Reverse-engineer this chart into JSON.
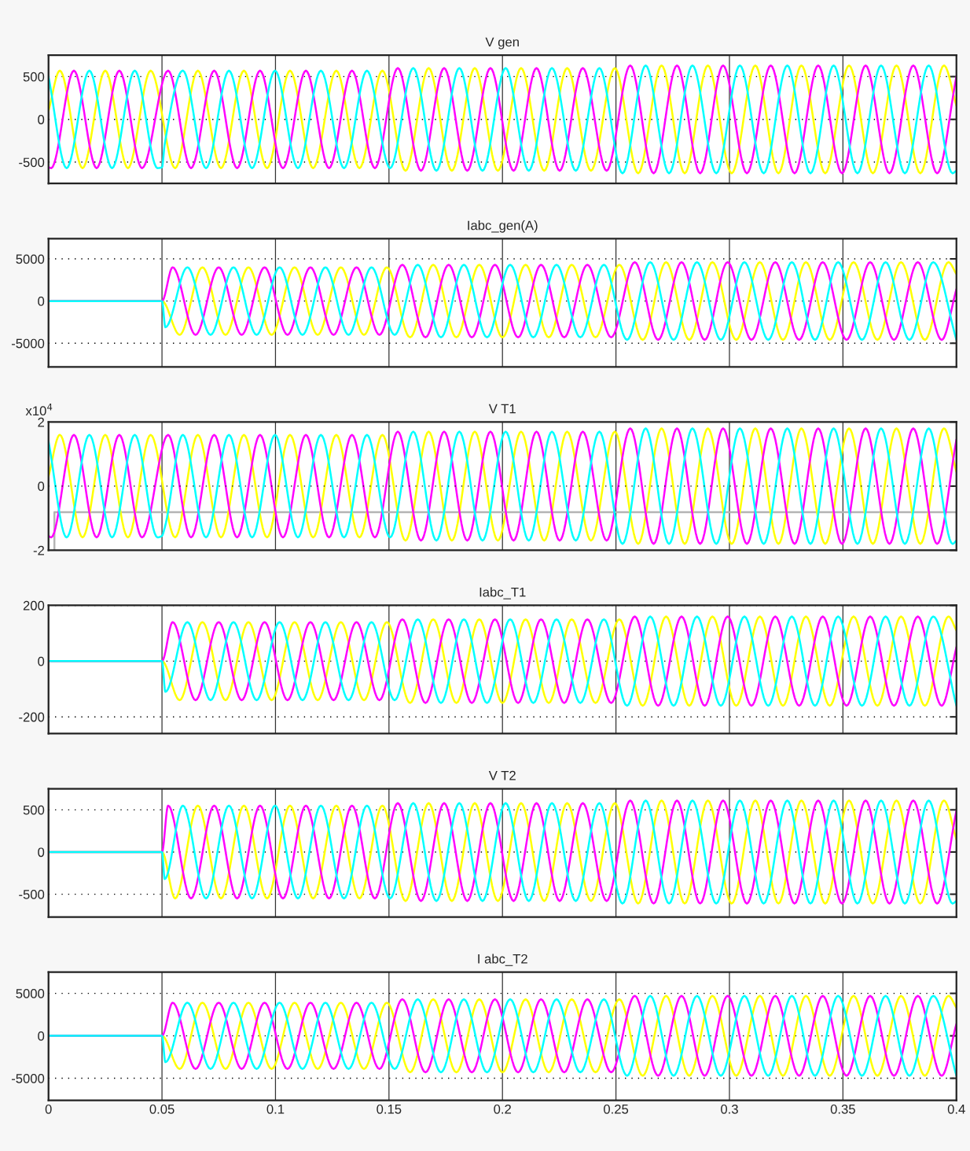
{
  "chart_data": [
    {
      "type": "line",
      "title": "V gen",
      "xlim": [
        0,
        0.4
      ],
      "xticks": [
        0,
        0.05,
        0.1,
        0.15,
        0.2,
        0.25,
        0.3,
        0.35,
        0.4
      ],
      "ylim": [
        -750,
        750
      ],
      "yticks": [
        -500,
        0,
        500
      ],
      "grid": true,
      "tick_labels": "y",
      "series": [
        {
          "color": "#ffff00",
          "x": [
            0,
            0.005,
            0.015,
            0.025,
            0.035,
            0.045,
            0.0558,
            0.0658,
            0.076,
            0.0861,
            0.0963,
            0.1064,
            0.1166,
            0.1268,
            0.137,
            0.1471,
            0.1573,
            0.1675,
            0.1777,
            0.1878,
            0.198,
            0.2082,
            0.2184,
            0.2285,
            0.239,
            0.2495,
            0.2598,
            0.2701,
            0.2803,
            0.2905,
            0.301,
            0.3114,
            0.3216,
            0.3317,
            0.3422,
            0.3527,
            0.3632,
            0.3736,
            0.3841,
            0.3945,
            0.4
          ],
          "values": [
            100,
            570,
            -570,
            570,
            -570,
            570,
            -570,
            570,
            -570,
            570,
            -570,
            570,
            -570,
            570,
            -570,
            570,
            -600,
            600,
            -600,
            600,
            -600,
            600,
            -600,
            600,
            -600,
            600,
            -630,
            630,
            -630,
            630,
            -630,
            630,
            -630,
            630,
            -630,
            630,
            -630,
            630,
            -630,
            630,
            160
          ]
        },
        {
          "color": "#ff00ff",
          "x": [
            0,
            0.0012,
            0.0112,
            0.0212,
            0.0312,
            0.0412,
            0.0527,
            0.0628,
            0.073,
            0.0831,
            0.0932,
            0.1033,
            0.1134,
            0.1236,
            0.1337,
            0.1438,
            0.1539,
            0.1641,
            0.1743,
            0.1845,
            0.1947,
            0.2049,
            0.215,
            0.2252,
            0.2354,
            0.2459,
            0.2563,
            0.2666,
            0.2769,
            0.2871,
            0.2972,
            0.3077,
            0.3182,
            0.3287,
            0.3391,
            0.3496,
            0.36,
            0.3705,
            0.381,
            0.3915,
            0.4
          ],
          "values": [
            -560,
            -570,
            570,
            -570,
            570,
            -570,
            570,
            -570,
            570,
            -570,
            570,
            -570,
            570,
            -570,
            570,
            -570,
            600,
            -600,
            600,
            -600,
            600,
            -600,
            600,
            -600,
            600,
            -600,
            630,
            -630,
            630,
            -630,
            630,
            -630,
            630,
            -630,
            630,
            -630,
            630,
            -630,
            630,
            -630,
            500
          ]
        },
        {
          "color": "#00ffff",
          "x": [
            0,
            0.008,
            0.018,
            0.028,
            0.038,
            0.048,
            0.05,
            0.0512,
            0.0592,
            0.0694,
            0.0795,
            0.0897,
            0.0998,
            0.1099,
            0.12,
            0.1302,
            0.1403,
            0.1505,
            0.1607,
            0.1709,
            0.181,
            0.1912,
            0.2014,
            0.2116,
            0.2218,
            0.2323,
            0.2427,
            0.2529,
            0.2631,
            0.2734,
            0.2837,
            0.2942,
            0.3046,
            0.3151,
            0.3255,
            0.3357,
            0.3459,
            0.3564,
            0.3668,
            0.3773,
            0.3878,
            0.3983,
            0.4
          ],
          "values": [
            500,
            -570,
            570,
            -570,
            570,
            -570,
            -560,
            -290,
            570,
            -570,
            570,
            -570,
            570,
            -570,
            570,
            -570,
            570,
            -570,
            600,
            -600,
            600,
            -600,
            600,
            -600,
            600,
            -600,
            600,
            -630,
            630,
            -630,
            630,
            -630,
            630,
            -630,
            630,
            -630,
            630,
            -630,
            630,
            -630,
            630,
            -630,
            -600
          ]
        }
      ]
    },
    {
      "type": "line",
      "title": "Iabc_gen(A)",
      "xlim": [
        0,
        0.4
      ],
      "xticks": [
        0,
        0.05,
        0.1,
        0.15,
        0.2,
        0.25,
        0.3,
        0.35,
        0.4
      ],
      "ylim": [
        -7800,
        7400
      ],
      "yticks": [
        -5000,
        0,
        5000
      ],
      "grid": true,
      "tick_labels": "y",
      "series": [
        {
          "color": "#ffff00",
          "x": [
            0,
            0.05,
            0.0578,
            0.0678,
            0.078,
            0.0881,
            0.0983,
            0.1084,
            0.1186,
            0.1288,
            0.139,
            0.1491,
            0.1593,
            0.1695,
            0.1797,
            0.1898,
            0.2,
            0.2102,
            0.2204,
            0.2305,
            0.241,
            0.2515,
            0.2618,
            0.2721,
            0.2823,
            0.2925,
            0.303,
            0.3134,
            0.3236,
            0.3337,
            0.3442,
            0.3547,
            0.3652,
            0.3756,
            0.3861,
            0.3965,
            0.4
          ],
          "values": [
            0,
            0,
            -4000,
            4000,
            -4000,
            4000,
            -4000,
            4000,
            -4000,
            4000,
            -4000,
            4000,
            -4300,
            4300,
            -4300,
            4300,
            -4300,
            4300,
            -4300,
            4300,
            -4300,
            4300,
            -4600,
            4600,
            -4600,
            4600,
            -4600,
            4600,
            -4600,
            4600,
            -4600,
            4600,
            -4600,
            4600,
            -4600,
            4600,
            3200
          ]
        },
        {
          "color": "#ff00ff",
          "x": [
            0,
            0.05,
            0.0547,
            0.0648,
            0.075,
            0.0851,
            0.0952,
            0.1053,
            0.1154,
            0.1256,
            0.1357,
            0.1458,
            0.1559,
            0.1661,
            0.1763,
            0.1865,
            0.1967,
            0.2069,
            0.217,
            0.2272,
            0.2374,
            0.2479,
            0.2583,
            0.2686,
            0.2789,
            0.2891,
            0.2992,
            0.3097,
            0.3202,
            0.3307,
            0.3411,
            0.3516,
            0.362,
            0.3725,
            0.383,
            0.3935,
            0.4
          ],
          "values": [
            0,
            0,
            4000,
            -4000,
            4000,
            -4000,
            4000,
            -4000,
            4000,
            -4000,
            4000,
            -4000,
            4300,
            -4300,
            4300,
            -4300,
            4300,
            -4300,
            4300,
            -4300,
            4300,
            -4300,
            4600,
            -4600,
            4600,
            -4600,
            4600,
            -4600,
            4600,
            -4600,
            4600,
            -4600,
            4600,
            -4600,
            4600,
            -4600,
            1400
          ]
        },
        {
          "color": "#00ffff",
          "x": [
            0,
            0.05,
            0.0515,
            0.0612,
            0.0714,
            0.0815,
            0.0917,
            0.1018,
            0.1119,
            0.122,
            0.1322,
            0.1423,
            0.1525,
            0.1627,
            0.1729,
            0.183,
            0.1932,
            0.2034,
            0.2136,
            0.2238,
            0.2343,
            0.2447,
            0.2549,
            0.2651,
            0.2754,
            0.2857,
            0.2962,
            0.3066,
            0.3171,
            0.3275,
            0.3377,
            0.3479,
            0.3584,
            0.3688,
            0.3793,
            0.3898,
            0.4
          ],
          "values": [
            0,
            0,
            -3100,
            4000,
            -4000,
            4000,
            -4000,
            4000,
            -4000,
            4000,
            -4000,
            4000,
            -4000,
            4300,
            -4300,
            4300,
            -4300,
            4300,
            -4300,
            4300,
            -4300,
            4300,
            -4600,
            4600,
            -4600,
            4600,
            -4600,
            4600,
            -4600,
            4600,
            -4600,
            4600,
            -4600,
            4600,
            -4600,
            4600,
            -4600
          ]
        }
      ]
    },
    {
      "type": "line",
      "title": "V T1",
      "xlim": [
        0,
        0.4
      ],
      "xticks": [
        0,
        0.05,
        0.1,
        0.15,
        0.2,
        0.25,
        0.3,
        0.35,
        0.4
      ],
      "ylim": [
        -2,
        2
      ],
      "yticks": [
        -2,
        0,
        2
      ],
      "grid": "x",
      "ref_lines": [
        {
          "axis": "y",
          "value": 0,
          "line_style": "dotted",
          "color": "#000000"
        }
      ],
      "tick_labels": "y",
      "annotations": [
        "x10$^{4}$"
      ],
      "series": [
        {
          "color": "#b4b4b4",
          "x": [
            0.0026,
            0.0026,
            0.4
          ],
          "values": [
            -2,
            -0.81,
            -0.81
          ]
        },
        {
          "color": "#ffff00",
          "x": [
            0,
            0.005,
            0.015,
            0.025,
            0.035,
            0.045,
            0.0558,
            0.0658,
            0.076,
            0.0861,
            0.0963,
            0.1064,
            0.1166,
            0.1268,
            0.137,
            0.1471,
            0.1573,
            0.1675,
            0.1777,
            0.1878,
            0.198,
            0.2082,
            0.2184,
            0.2285,
            0.239,
            0.2495,
            0.2598,
            0.2701,
            0.2803,
            0.2905,
            0.301,
            0.3114,
            0.3216,
            0.3317,
            0.3422,
            0.3527,
            0.3632,
            0.3736,
            0.3841,
            0.3945,
            0.4
          ],
          "values": [
            0.3,
            1.6,
            -1.6,
            1.6,
            -1.6,
            1.6,
            -1.6,
            1.6,
            -1.6,
            1.6,
            -1.6,
            1.6,
            -1.6,
            1.6,
            -1.6,
            1.6,
            -1.7,
            1.7,
            -1.7,
            1.7,
            -1.7,
            1.7,
            -1.7,
            1.7,
            -1.7,
            1.7,
            -1.8,
            1.8,
            -1.8,
            1.8,
            -1.8,
            1.8,
            -1.8,
            1.8,
            -1.8,
            1.8,
            -1.8,
            1.8,
            -1.8,
            1.8,
            0.45
          ]
        },
        {
          "color": "#ff00ff",
          "x": [
            0,
            0.0012,
            0.0112,
            0.0212,
            0.0312,
            0.0412,
            0.0527,
            0.0628,
            0.073,
            0.0831,
            0.0932,
            0.1033,
            0.1134,
            0.1236,
            0.1337,
            0.1438,
            0.1539,
            0.1641,
            0.1743,
            0.1845,
            0.1947,
            0.2049,
            0.215,
            0.2252,
            0.2354,
            0.2459,
            0.2563,
            0.2666,
            0.2769,
            0.2871,
            0.2972,
            0.3077,
            0.3182,
            0.3287,
            0.3391,
            0.3496,
            0.36,
            0.3705,
            0.381,
            0.3915,
            0.4
          ],
          "values": [
            -1.55,
            -1.6,
            1.6,
            -1.6,
            1.6,
            -1.6,
            1.6,
            -1.6,
            1.6,
            -1.6,
            1.6,
            -1.6,
            1.6,
            -1.6,
            1.6,
            -1.6,
            1.7,
            -1.7,
            1.7,
            -1.7,
            1.7,
            -1.7,
            1.7,
            -1.7,
            1.7,
            -1.7,
            1.8,
            -1.8,
            1.8,
            -1.8,
            1.8,
            -1.8,
            1.8,
            -1.8,
            1.8,
            -1.8,
            1.8,
            -1.8,
            1.8,
            -1.8,
            1.45
          ]
        },
        {
          "color": "#00ffff",
          "x": [
            0,
            0.008,
            0.018,
            0.028,
            0.038,
            0.048,
            0.05,
            0.0512,
            0.0592,
            0.0694,
            0.0795,
            0.0897,
            0.0998,
            0.1099,
            0.12,
            0.1302,
            0.1403,
            0.1505,
            0.1607,
            0.1709,
            0.181,
            0.1912,
            0.2014,
            0.2116,
            0.2218,
            0.2323,
            0.2427,
            0.2529,
            0.2631,
            0.2734,
            0.2837,
            0.2942,
            0.3046,
            0.3151,
            0.3255,
            0.3357,
            0.3459,
            0.3564,
            0.3668,
            0.3773,
            0.3878,
            0.3983,
            0.4
          ],
          "values": [
            1.4,
            -1.6,
            1.6,
            -1.6,
            1.6,
            -1.6,
            -1.55,
            -1.3,
            1.6,
            -1.6,
            1.6,
            -1.6,
            1.6,
            -1.6,
            1.6,
            -1.6,
            1.6,
            -1.6,
            1.7,
            -1.7,
            1.7,
            -1.7,
            1.7,
            -1.7,
            1.7,
            -1.7,
            1.7,
            -1.8,
            1.8,
            -1.8,
            1.8,
            -1.8,
            1.8,
            -1.8,
            1.8,
            -1.8,
            1.8,
            -1.8,
            1.8,
            -1.8,
            1.8,
            -1.8,
            -1.7
          ]
        }
      ]
    },
    {
      "type": "line",
      "title": "Iabc_T1",
      "xlim": [
        0,
        0.4
      ],
      "xticks": [
        0,
        0.05,
        0.1,
        0.15,
        0.2,
        0.25,
        0.3,
        0.35,
        0.4
      ],
      "ylim": [
        -260,
        200
      ],
      "yticks": [
        -200,
        0,
        200
      ],
      "grid": true,
      "tick_labels": "y",
      "series": [
        {
          "color": "#ffff00",
          "x": [
            0,
            0.05,
            0.0578,
            0.0678,
            0.078,
            0.0881,
            0.0983,
            0.1084,
            0.1186,
            0.1288,
            0.139,
            0.1491,
            0.1593,
            0.1695,
            0.1797,
            0.1898,
            0.2,
            0.2102,
            0.2204,
            0.2305,
            0.241,
            0.2515,
            0.2618,
            0.2721,
            0.2823,
            0.2925,
            0.303,
            0.3134,
            0.3236,
            0.3337,
            0.3442,
            0.3547,
            0.3652,
            0.3756,
            0.3861,
            0.3965,
            0.4
          ],
          "values": [
            0,
            0,
            -140,
            140,
            -140,
            140,
            -140,
            140,
            -140,
            140,
            -140,
            140,
            -150,
            150,
            -150,
            150,
            -150,
            150,
            -150,
            150,
            -150,
            150,
            -160,
            160,
            -160,
            160,
            -160,
            160,
            -160,
            160,
            -160,
            160,
            -160,
            160,
            -160,
            160,
            110
          ]
        },
        {
          "color": "#ff00ff",
          "x": [
            0,
            0.05,
            0.0547,
            0.0648,
            0.075,
            0.0851,
            0.0952,
            0.1053,
            0.1154,
            0.1256,
            0.1357,
            0.1458,
            0.1559,
            0.1661,
            0.1763,
            0.1865,
            0.1967,
            0.2069,
            0.217,
            0.2272,
            0.2374,
            0.2479,
            0.2583,
            0.2686,
            0.2789,
            0.2891,
            0.2992,
            0.3097,
            0.3202,
            0.3307,
            0.3411,
            0.3516,
            0.362,
            0.3725,
            0.383,
            0.3935,
            0.4
          ],
          "values": [
            0,
            0,
            140,
            -140,
            140,
            -140,
            140,
            -140,
            140,
            -140,
            140,
            -140,
            150,
            -150,
            150,
            -150,
            150,
            -150,
            150,
            -150,
            150,
            -150,
            160,
            -160,
            160,
            -160,
            160,
            -160,
            160,
            -160,
            160,
            -160,
            160,
            -160,
            160,
            -160,
            50
          ]
        },
        {
          "color": "#00ffff",
          "x": [
            0,
            0.05,
            0.0515,
            0.0612,
            0.0714,
            0.0815,
            0.0917,
            0.1018,
            0.1119,
            0.122,
            0.1322,
            0.1423,
            0.1525,
            0.1627,
            0.1729,
            0.183,
            0.1932,
            0.2034,
            0.2136,
            0.2238,
            0.2343,
            0.2447,
            0.2549,
            0.2651,
            0.2754,
            0.2857,
            0.2962,
            0.3066,
            0.3171,
            0.3275,
            0.3377,
            0.3479,
            0.3584,
            0.3688,
            0.3793,
            0.3898,
            0.4
          ],
          "values": [
            0,
            0,
            -110,
            140,
            -140,
            140,
            -140,
            140,
            -140,
            140,
            -140,
            140,
            -140,
            150,
            -150,
            150,
            -150,
            150,
            -150,
            150,
            -150,
            150,
            -160,
            160,
            -160,
            160,
            -160,
            160,
            -160,
            160,
            -160,
            160,
            -160,
            160,
            -160,
            160,
            -160
          ]
        }
      ]
    },
    {
      "type": "line",
      "title": "V T2",
      "xlim": [
        0,
        0.4
      ],
      "xticks": [
        0,
        0.05,
        0.1,
        0.15,
        0.2,
        0.25,
        0.3,
        0.35,
        0.4
      ],
      "ylim": [
        -770,
        750
      ],
      "yticks": [
        -500,
        0,
        500
      ],
      "grid": true,
      "tick_labels": "y",
      "series": [
        {
          "color": "#ffff00",
          "x": [
            0,
            0.05,
            0.0558,
            0.0658,
            0.076,
            0.0861,
            0.0963,
            0.1064,
            0.1166,
            0.1268,
            0.137,
            0.1471,
            0.1573,
            0.1675,
            0.1777,
            0.1878,
            0.198,
            0.2082,
            0.2184,
            0.2285,
            0.239,
            0.2495,
            0.2598,
            0.2701,
            0.2803,
            0.2905,
            0.301,
            0.3114,
            0.3216,
            0.3317,
            0.3422,
            0.3527,
            0.3632,
            0.3736,
            0.3841,
            0.3945,
            0.4
          ],
          "values": [
            0,
            0,
            -550,
            550,
            -550,
            550,
            -550,
            550,
            -550,
            550,
            -550,
            550,
            -580,
            580,
            -580,
            580,
            -580,
            580,
            -580,
            580,
            -580,
            580,
            -610,
            610,
            -610,
            610,
            -610,
            610,
            -610,
            610,
            -610,
            610,
            -610,
            610,
            -610,
            610,
            150
          ]
        },
        {
          "color": "#ff00ff",
          "x": [
            0,
            0.05,
            0.0527,
            0.0628,
            0.073,
            0.0831,
            0.0932,
            0.1033,
            0.1134,
            0.1236,
            0.1337,
            0.1438,
            0.1539,
            0.1641,
            0.1743,
            0.1845,
            0.1947,
            0.2049,
            0.215,
            0.2252,
            0.2354,
            0.2459,
            0.2563,
            0.2666,
            0.2769,
            0.2871,
            0.2972,
            0.3077,
            0.3182,
            0.3287,
            0.3391,
            0.3496,
            0.36,
            0.3705,
            0.381,
            0.3915,
            0.4
          ],
          "values": [
            0,
            0,
            550,
            -550,
            550,
            -550,
            550,
            -550,
            550,
            -550,
            550,
            -550,
            580,
            -580,
            580,
            -580,
            580,
            -580,
            580,
            -580,
            580,
            -580,
            610,
            -610,
            610,
            -610,
            610,
            -610,
            610,
            -610,
            610,
            -610,
            610,
            -610,
            610,
            -610,
            490
          ]
        },
        {
          "color": "#00ffff",
          "x": [
            0,
            0.05,
            0.0512,
            0.0592,
            0.0694,
            0.0795,
            0.0897,
            0.0998,
            0.1099,
            0.12,
            0.1302,
            0.1403,
            0.1505,
            0.1607,
            0.1709,
            0.181,
            0.1912,
            0.2014,
            0.2116,
            0.2218,
            0.2323,
            0.2427,
            0.2529,
            0.2631,
            0.2734,
            0.2837,
            0.2942,
            0.3046,
            0.3151,
            0.3255,
            0.3357,
            0.3459,
            0.3564,
            0.3668,
            0.3773,
            0.3878,
            0.3983,
            0.4
          ],
          "values": [
            0,
            0,
            -320,
            550,
            -550,
            550,
            -550,
            550,
            -550,
            550,
            -550,
            550,
            -550,
            580,
            -580,
            580,
            -580,
            580,
            -580,
            580,
            -580,
            580,
            -610,
            610,
            -610,
            610,
            -610,
            610,
            -610,
            610,
            -610,
            610,
            -610,
            610,
            -610,
            610,
            -610,
            -580
          ]
        }
      ]
    },
    {
      "type": "line",
      "title": "I abc_T2",
      "xlim": [
        0,
        0.4
      ],
      "xticks": [
        0,
        0.05,
        0.1,
        0.15,
        0.2,
        0.25,
        0.3,
        0.35,
        0.4
      ],
      "ylim": [
        -7600,
        7500
      ],
      "yticks": [
        -5000,
        0,
        5000
      ],
      "grid": true,
      "series": [
        {
          "color": "#ffff00",
          "x": [
            0,
            0.05,
            0.0578,
            0.0678,
            0.078,
            0.0881,
            0.0983,
            0.1084,
            0.1186,
            0.1288,
            0.139,
            0.1491,
            0.1593,
            0.1695,
            0.1797,
            0.1898,
            0.2,
            0.2102,
            0.2204,
            0.2305,
            0.241,
            0.2515,
            0.2618,
            0.2721,
            0.2823,
            0.2925,
            0.303,
            0.3134,
            0.3236,
            0.3337,
            0.3442,
            0.3547,
            0.3652,
            0.3756,
            0.3861,
            0.3965,
            0.4
          ],
          "values": [
            0,
            0,
            -3900,
            3900,
            -3900,
            3900,
            -3900,
            3900,
            -3900,
            3900,
            -3900,
            3900,
            -4300,
            4300,
            -4300,
            4300,
            -4300,
            4300,
            -4300,
            4300,
            -4300,
            4300,
            -4700,
            4700,
            -4700,
            4700,
            -4700,
            4700,
            -4700,
            4700,
            -4700,
            4700,
            -4700,
            4700,
            -4700,
            4700,
            3300
          ]
        },
        {
          "color": "#ff00ff",
          "x": [
            0,
            0.05,
            0.0547,
            0.0648,
            0.075,
            0.0851,
            0.0952,
            0.1053,
            0.1154,
            0.1256,
            0.1357,
            0.1458,
            0.1559,
            0.1661,
            0.1763,
            0.1865,
            0.1967,
            0.2069,
            0.217,
            0.2272,
            0.2374,
            0.2479,
            0.2583,
            0.2686,
            0.2789,
            0.2891,
            0.2992,
            0.3097,
            0.3202,
            0.3307,
            0.3411,
            0.3516,
            0.362,
            0.3725,
            0.383,
            0.3935,
            0.4
          ],
          "values": [
            0,
            0,
            3900,
            -3900,
            3900,
            -3900,
            3900,
            -3900,
            3900,
            -3900,
            3900,
            -3900,
            4300,
            -4300,
            4300,
            -4300,
            4300,
            -4300,
            4300,
            -4300,
            4300,
            -4300,
            4700,
            -4700,
            4700,
            -4700,
            4700,
            -4700,
            4700,
            -4700,
            4700,
            -4700,
            4700,
            -4700,
            4700,
            -4700,
            1400
          ]
        },
        {
          "color": "#00ffff",
          "x": [
            0,
            0.05,
            0.0515,
            0.0612,
            0.0714,
            0.0815,
            0.0917,
            0.1018,
            0.1119,
            0.122,
            0.1322,
            0.1423,
            0.1525,
            0.1627,
            0.1729,
            0.183,
            0.1932,
            0.2034,
            0.2136,
            0.2238,
            0.2343,
            0.2447,
            0.2549,
            0.2651,
            0.2754,
            0.2857,
            0.2962,
            0.3066,
            0.3171,
            0.3275,
            0.3377,
            0.3479,
            0.3584,
            0.3688,
            0.3793,
            0.3898,
            0.4
          ],
          "values": [
            0,
            0,
            -3100,
            3900,
            -3900,
            3900,
            -3900,
            3900,
            -3900,
            3900,
            -3900,
            3900,
            -3900,
            4300,
            -4300,
            4300,
            -4300,
            4300,
            -4300,
            4300,
            -4300,
            4300,
            -4700,
            4700,
            -4700,
            4700,
            -4700,
            4700,
            -4700,
            4700,
            -4700,
            4700,
            -4700,
            4700,
            -4700,
            4700,
            -4700
          ]
        }
      ]
    }
  ]
}
